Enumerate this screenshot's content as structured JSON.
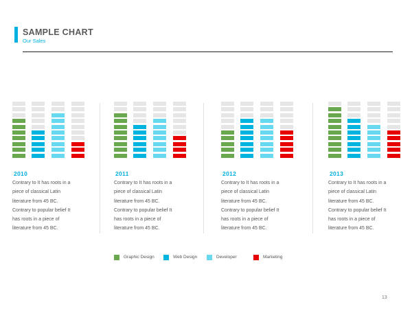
{
  "header": {
    "title": "SAMPLE CHART",
    "subtitle": "Our Sales"
  },
  "colors": {
    "accent": "#00b0e0",
    "empty_segment": "#e6e6e6"
  },
  "chart_data": {
    "type": "bar",
    "segments_per_bar": 10,
    "series_names": [
      "Graphic Design",
      "Web Design",
      "Developer",
      "Marketing"
    ],
    "series_colors": [
      "#6aa84f",
      "#00b4e0",
      "#66d9f0",
      "#e60000"
    ],
    "panels": [
      {
        "year": "2010",
        "values": [
          7,
          5,
          8,
          3
        ]
      },
      {
        "year": "2011",
        "values": [
          8,
          6,
          7,
          4
        ]
      },
      {
        "year": "2012",
        "values": [
          5,
          7,
          7,
          5
        ]
      },
      {
        "year": "2013",
        "values": [
          9,
          7,
          6,
          5
        ]
      }
    ]
  },
  "descriptions": [
    [
      "Contrary to It has roots in a",
      "piece of classical Latin",
      "literature from 45 BC.",
      "Contrary to popular belief It",
      "has roots in a piece of",
      "literature from 45 BC."
    ],
    [
      "Contrary to It has roots in a",
      "piece of classical Latin",
      "literature from 45 BC.",
      "Contrary to popular belief It",
      "has roots in a piece of",
      "literature from 45 BC."
    ],
    [
      "Contrary to It has roots in a",
      "piece of classical Latin",
      "literature from 45 BC.",
      "Contrary to popular belief It",
      "has roots in a piece of",
      "literature from 45 BC."
    ],
    [
      "Contrary to It has roots in a",
      "piece of classical Latin",
      "literature from 45 BC.",
      "Contrary to popular belief It",
      "has roots in a piece of",
      "literature from 45 BC."
    ]
  ],
  "page_number": "13"
}
